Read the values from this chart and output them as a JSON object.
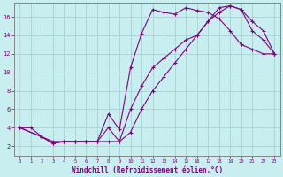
{
  "xlabel": "Windchill (Refroidissement éolien,°C)",
  "bg_color": "#c8eef0",
  "line_color": "#800080",
  "grid_color": "#a0cece",
  "xlim": [
    -0.5,
    23.5
  ],
  "ylim": [
    1.0,
    17.5
  ],
  "xticks": [
    0,
    1,
    2,
    3,
    4,
    5,
    6,
    7,
    8,
    9,
    10,
    11,
    12,
    13,
    14,
    15,
    16,
    17,
    18,
    19,
    20,
    21,
    22,
    23
  ],
  "yticks": [
    2,
    4,
    6,
    8,
    10,
    12,
    14,
    16
  ],
  "curve1_x": [
    0,
    1,
    2,
    3,
    4,
    5,
    6,
    7,
    8,
    9,
    10,
    11,
    12,
    13,
    14,
    15,
    16,
    17,
    18,
    19,
    20,
    21,
    22,
    23
  ],
  "curve1_y": [
    4,
    4,
    3,
    2.5,
    2.5,
    2.5,
    2.5,
    2.5,
    5.5,
    3.8,
    10.5,
    14.2,
    16.8,
    16.5,
    16.3,
    17.0,
    16.7,
    16.5,
    15.8,
    14.5,
    13.0,
    12.5,
    12.0,
    12.0
  ],
  "curve2_x": [
    0,
    2,
    3,
    4,
    5,
    6,
    7,
    8,
    9,
    10,
    11,
    12,
    13,
    14,
    15,
    16,
    17,
    18,
    19,
    20,
    21,
    22,
    23
  ],
  "curve2_y": [
    4,
    3,
    2.3,
    2.5,
    2.5,
    2.5,
    2.5,
    4.0,
    2.5,
    6.0,
    8.5,
    10.5,
    11.5,
    12.5,
    13.5,
    14.0,
    15.5,
    16.5,
    17.2,
    16.8,
    15.5,
    14.5,
    12.0
  ],
  "curve3_x": [
    0,
    2,
    3,
    4,
    5,
    6,
    7,
    8,
    9,
    10,
    11,
    12,
    13,
    14,
    15,
    16,
    17,
    18,
    19,
    20,
    21,
    22,
    23
  ],
  "curve3_y": [
    4,
    3,
    2.3,
    2.5,
    2.5,
    2.5,
    2.5,
    2.5,
    2.5,
    3.5,
    6.0,
    8.0,
    9.5,
    11.0,
    12.5,
    14.0,
    15.5,
    17.0,
    17.2,
    16.8,
    14.5,
    13.5,
    12.0
  ]
}
